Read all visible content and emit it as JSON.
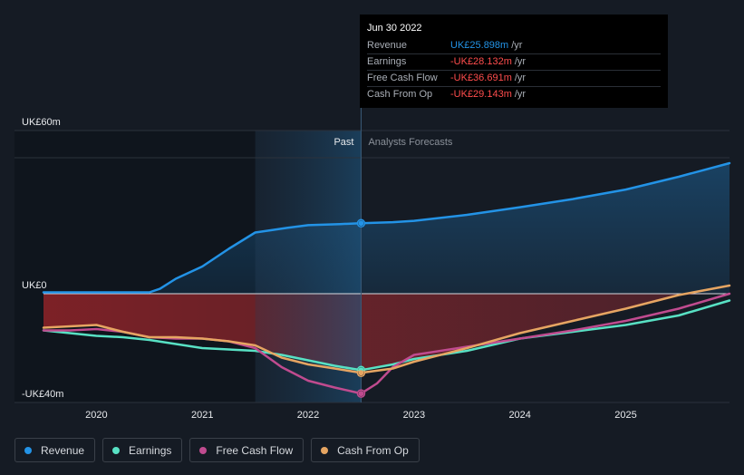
{
  "chart_data": {
    "type": "line",
    "y_axis_labels": [
      "UK£60m",
      "UK£0",
      "-UK£40m"
    ],
    "ylim": [
      -40,
      60
    ],
    "x_ticks": [
      2020,
      2021,
      2022,
      2023,
      2024,
      2025
    ],
    "xlim": [
      2019.5,
      2025.98
    ],
    "past_forecast_split": 2022.5,
    "shade_start": 2021.5,
    "zones": {
      "past": "Past",
      "forecast": "Analysts Forecasts"
    },
    "series": [
      {
        "name": "Revenue",
        "color": "#2393e6",
        "x": [
          2019.5,
          2020.0,
          2020.5,
          2020.6,
          2020.75,
          2021.0,
          2021.25,
          2021.5,
          2021.8,
          2022.0,
          2022.3,
          2022.5,
          2022.8,
          2023.0,
          2023.5,
          2024.0,
          2024.5,
          2025.0,
          2025.5,
          2025.98
        ],
        "y": [
          0.5,
          0.5,
          0.5,
          1.8,
          5.5,
          10.0,
          16.5,
          22.5,
          24.2,
          25.2,
          25.6,
          25.9,
          26.3,
          26.8,
          29.0,
          31.8,
          34.8,
          38.3,
          43.0,
          48.0
        ]
      },
      {
        "name": "Earnings",
        "color": "#58e1c4",
        "x": [
          2019.5,
          2019.75,
          2020.0,
          2020.25,
          2020.5,
          2020.75,
          2021.0,
          2021.25,
          2021.5,
          2021.75,
          2022.0,
          2022.25,
          2022.5,
          2022.8,
          2023.0,
          2023.5,
          2024.0,
          2024.5,
          2025.0,
          2025.5,
          2025.98
        ],
        "y": [
          -13.5,
          -14.5,
          -15.5,
          -16.0,
          -17.0,
          -18.5,
          -20.0,
          -20.5,
          -21.0,
          -22.5,
          -24.5,
          -26.5,
          -28.1,
          -26.0,
          -24.0,
          -21.0,
          -16.5,
          -14.0,
          -11.5,
          -8.0,
          -2.5
        ]
      },
      {
        "name": "Free Cash Flow",
        "color": "#c04b8f",
        "x": [
          2019.5,
          2019.75,
          2020.0,
          2020.25,
          2020.5,
          2020.75,
          2021.0,
          2021.25,
          2021.5,
          2021.75,
          2022.0,
          2022.25,
          2022.5,
          2022.65,
          2022.8,
          2023.0,
          2023.5,
          2024.0,
          2024.5,
          2025.0,
          2025.5,
          2025.98
        ],
        "y": [
          -13.5,
          -13.5,
          -13.0,
          -14.0,
          -16.0,
          -16.5,
          -16.5,
          -17.5,
          -20.0,
          -27.0,
          -32.0,
          -34.5,
          -36.7,
          -33.0,
          -27.0,
          -22.5,
          -19.5,
          -16.5,
          -13.5,
          -10.0,
          -5.5,
          0.0
        ]
      },
      {
        "name": "Cash From Op",
        "color": "#e6a562",
        "x": [
          2019.5,
          2019.75,
          2020.0,
          2020.25,
          2020.5,
          2020.75,
          2021.0,
          2021.25,
          2021.5,
          2021.75,
          2022.0,
          2022.25,
          2022.5,
          2022.8,
          2023.0,
          2023.5,
          2024.0,
          2024.5,
          2025.0,
          2025.5,
          2025.98
        ],
        "y": [
          -12.5,
          -12.0,
          -11.5,
          -14.0,
          -16.0,
          -16.0,
          -16.5,
          -17.5,
          -19.0,
          -23.5,
          -26.0,
          -27.5,
          -29.1,
          -27.5,
          -25.0,
          -20.0,
          -14.5,
          -10.0,
          -5.5,
          -0.5,
          3.0
        ]
      }
    ]
  },
  "tooltip": {
    "date": "Jun 30 2022",
    "rows": [
      {
        "label": "Revenue",
        "value": "UK£25.898m",
        "unit": "/yr",
        "color": "#2393e6"
      },
      {
        "label": "Earnings",
        "value": "-UK£28.132m",
        "unit": "/yr",
        "color": "#ff4d4d"
      },
      {
        "label": "Free Cash Flow",
        "value": "-UK£36.691m",
        "unit": "/yr",
        "color": "#ff4d4d"
      },
      {
        "label": "Cash From Op",
        "value": "-UK£29.143m",
        "unit": "/yr",
        "color": "#ff4d4d"
      }
    ]
  },
  "legend": [
    {
      "label": "Revenue",
      "color": "#2393e6"
    },
    {
      "label": "Earnings",
      "color": "#58e1c4"
    },
    {
      "label": "Free Cash Flow",
      "color": "#c04b8f"
    },
    {
      "label": "Cash From Op",
      "color": "#e6a562"
    }
  ]
}
